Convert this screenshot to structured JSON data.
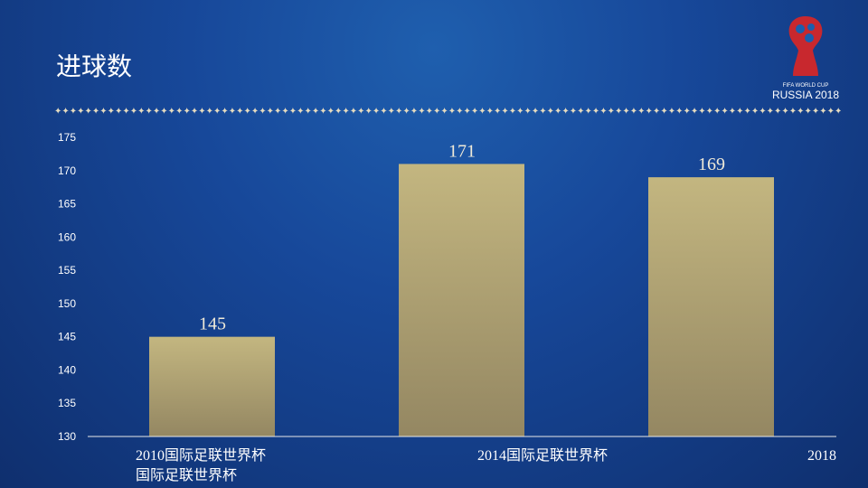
{
  "title": "进球数",
  "logo": {
    "line1": "FIFA WORLD CUP",
    "line2": "RUSSIA 2018"
  },
  "chart_data": {
    "type": "bar",
    "title": "",
    "categories": [
      "2010国际足联世界杯\n国际足联世界杯",
      "2014国际足联世界杯",
      "2018"
    ],
    "values": [
      145,
      171,
      169
    ],
    "ylim": [
      130,
      175
    ],
    "yticks": [
      130,
      135,
      140,
      145,
      150,
      155,
      160,
      165,
      170,
      175
    ],
    "grid": false,
    "bar_color": "#bfb27c",
    "data_labels": true
  }
}
